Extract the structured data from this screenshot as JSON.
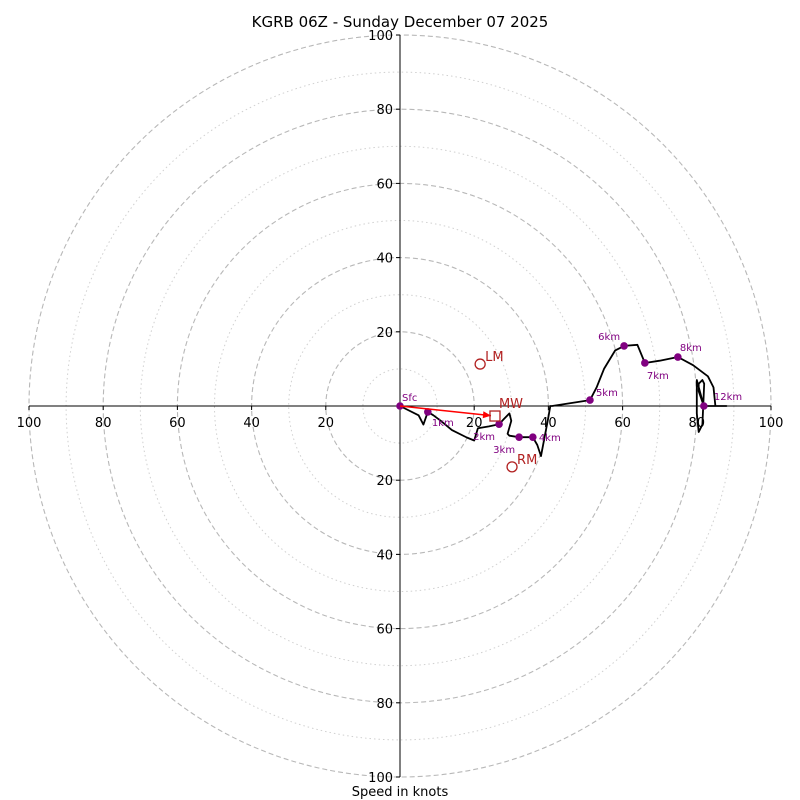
{
  "chart_data": {
    "type": "line",
    "title": "KGRB 06Z - Sunday December 07 2025",
    "xlabel": "Speed in knots",
    "ylabel": "",
    "xlim": [
      -100,
      100
    ],
    "ylim": [
      -100,
      100
    ],
    "ring_major": [
      20,
      40,
      60,
      80,
      100
    ],
    "ring_minor": [
      10,
      30,
      50,
      70,
      90
    ],
    "x_tick_labels_left": [
      "100",
      "80",
      "60",
      "40",
      "20"
    ],
    "x_tick_values_left": [
      -100,
      -80,
      -60,
      -40,
      -20
    ],
    "x_tick_labels_right": [
      "20",
      "40",
      "60",
      "80",
      "100"
    ],
    "x_tick_values_right": [
      20,
      40,
      60,
      80,
      100
    ],
    "y_tick_labels_top": [
      "20",
      "40",
      "60",
      "80",
      "100"
    ],
    "y_tick_values_top": [
      20,
      40,
      60,
      80,
      100
    ],
    "y_tick_labels_bottom": [
      "20",
      "40",
      "60",
      "80",
      "100"
    ],
    "y_tick_values_bottom": [
      -20,
      -40,
      -60,
      -80,
      -100
    ],
    "trace": {
      "name": "hodograph",
      "color": "#000000",
      "u": [
        0,
        5,
        6.3,
        7.5,
        9,
        11,
        14,
        18,
        20,
        21,
        24,
        26.7,
        28,
        29.5,
        30,
        29,
        29.5,
        32.1,
        35.8,
        37,
        38,
        40,
        40.5,
        41,
        51.2,
        53,
        55,
        58,
        60.4,
        64,
        66.0,
        70,
        74.9,
        79,
        83,
        84.5,
        85,
        88,
        81.9,
        80.5,
        80.5,
        81.5,
        82,
        81.5,
        80.5,
        80,
        80,
        81.9
      ],
      "v": [
        0,
        -2.5,
        -5,
        -1.6,
        -2.5,
        -4,
        -6.5,
        -8.5,
        -9.3,
        -6,
        -5.5,
        -4.9,
        -3.5,
        -2,
        -4,
        -7.5,
        -8,
        -8.4,
        -8.4,
        -10.5,
        -13.5,
        -3,
        0,
        0,
        1.6,
        5,
        10,
        15,
        16.2,
        16.5,
        11.6,
        12.2,
        13.2,
        11,
        8,
        5,
        0,
        0,
        0,
        4,
        6,
        7,
        6,
        -5,
        -7,
        -2,
        7,
        0
      ]
    },
    "height_markers": {
      "color": "#800080",
      "labels": [
        "Sfc",
        "1km",
        "2km",
        "3km",
        "4km",
        "5km",
        "6km",
        "7km",
        "8km",
        "12km"
      ],
      "u": [
        0,
        7.5,
        26.7,
        32.1,
        35.8,
        51.2,
        60.4,
        66.0,
        74.9,
        81.9
      ],
      "v": [
        0,
        -1.6,
        -4.9,
        -8.4,
        -8.4,
        1.6,
        16.2,
        11.6,
        13.2,
        0
      ]
    },
    "storm_motion": {
      "color": "#b22222",
      "LM": {
        "label": "LM",
        "u": 21.6,
        "v": 11.3
      },
      "RM": {
        "label": "RM",
        "u": 30.2,
        "v": -16.4
      },
      "MW": {
        "label": "MW",
        "u": 25.6,
        "v": -2.7
      }
    },
    "shear_arrow": {
      "color": "#ff0000",
      "from": [
        0,
        0
      ],
      "to": [
        25.6,
        -2.7
      ]
    },
    "grid": true,
    "legend": "none"
  }
}
